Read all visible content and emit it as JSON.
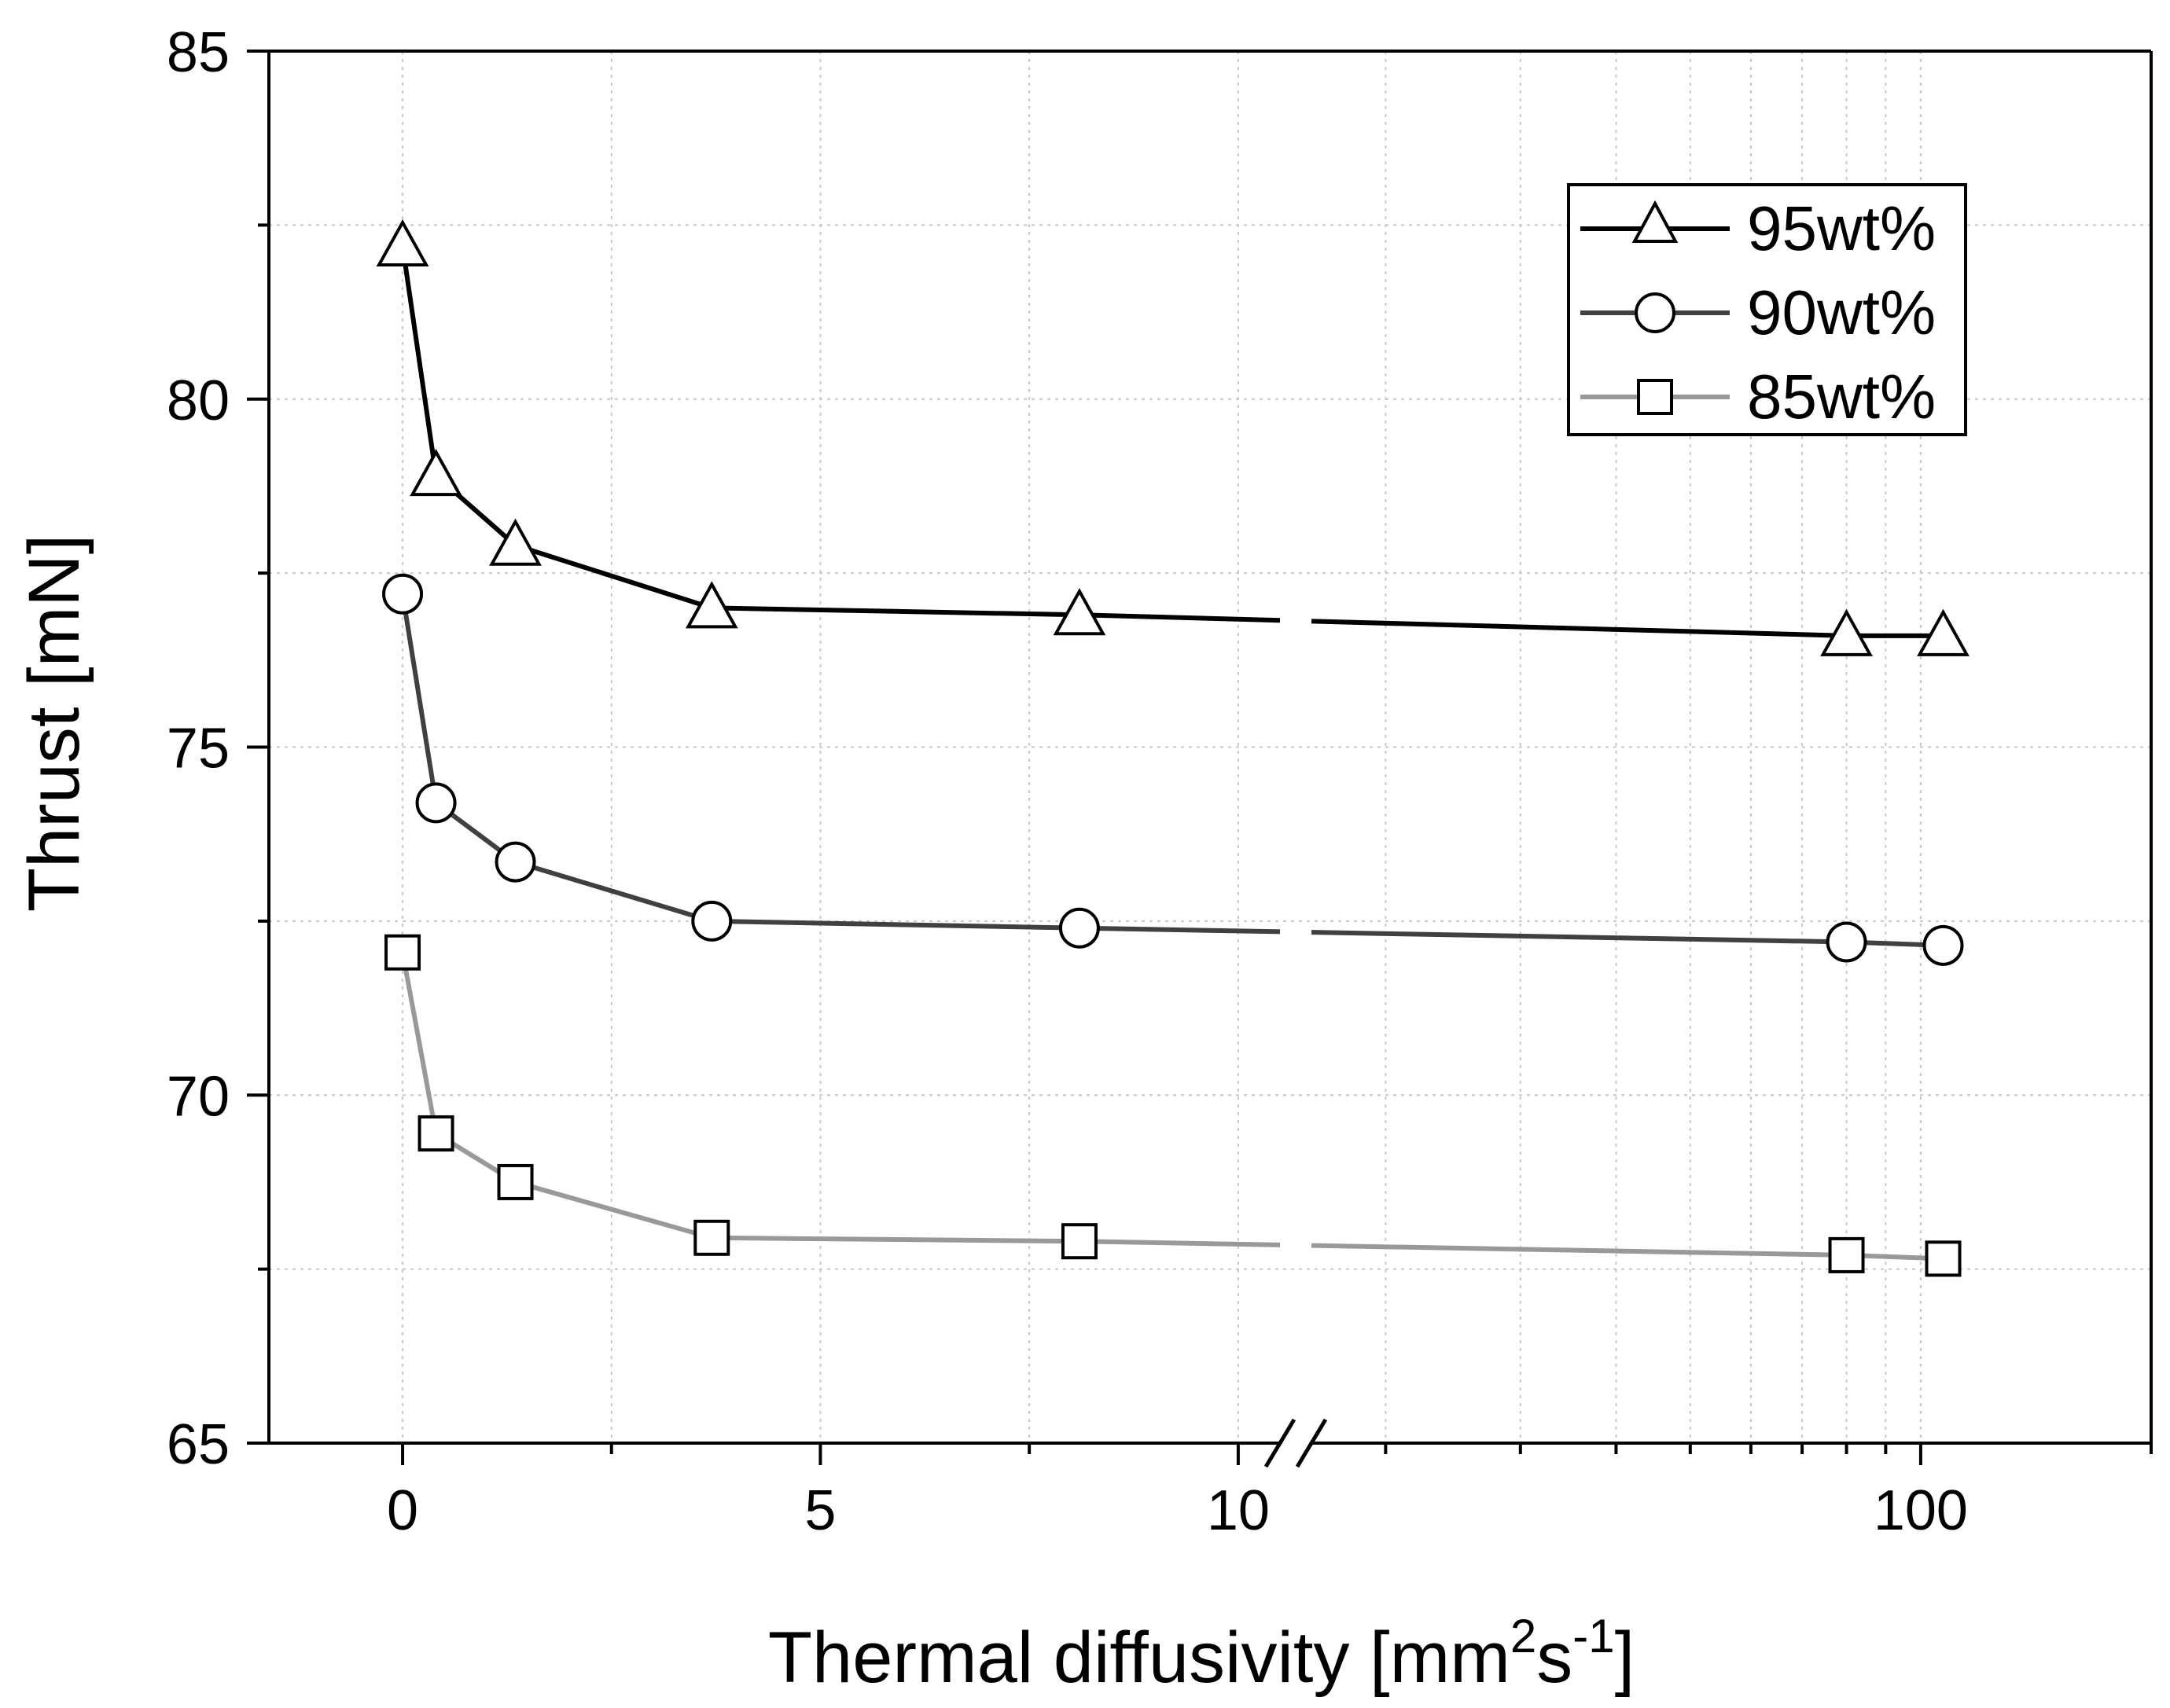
{
  "chart_data": {
    "type": "line",
    "xlabel": {
      "prefix": "Thermal diffusivity [mm",
      "sup1": "2",
      "mid": "s",
      "sup2": "-1",
      "suffix": "]"
    },
    "ylabel": "Thrust [mN]",
    "ylim": [
      65,
      85
    ],
    "yticks": [
      65,
      70,
      75,
      80,
      85
    ],
    "x_axis": {
      "broken": true,
      "linear_segment": {
        "range": [
          -1.6,
          10.5
        ],
        "ticks": [
          0,
          5,
          10
        ]
      },
      "log_segment": {
        "range": [
          16,
          200
        ],
        "ticks": [
          100
        ]
      }
    },
    "grid": true,
    "legend_position": "top-right",
    "x": [
      0,
      0.4,
      1.35,
      3.7,
      8.1,
      80,
      107
    ],
    "series": [
      {
        "name": "95wt%",
        "marker": "triangle",
        "color": "#000000",
        "values": [
          82.2,
          78.9,
          77.9,
          77.0,
          76.9,
          76.6,
          76.6
        ]
      },
      {
        "name": "90wt%",
        "marker": "circle",
        "color": "#404040",
        "values": [
          77.2,
          74.2,
          73.35,
          72.5,
          72.4,
          72.2,
          72.15
        ]
      },
      {
        "name": "85wt%",
        "marker": "square",
        "color": "#999999",
        "values": [
          72.05,
          69.45,
          68.75,
          67.95,
          67.9,
          67.7,
          67.65
        ]
      }
    ]
  }
}
